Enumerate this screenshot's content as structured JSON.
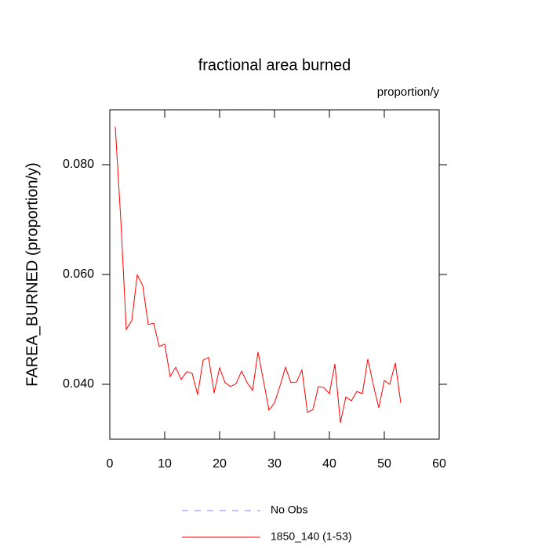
{
  "chart_data": {
    "type": "line",
    "title": "fractional area burned",
    "subtitle": "proportion/y",
    "y_label": "FAREA_BURNED  (proportion/y)",
    "x": [
      1,
      2,
      3,
      4,
      5,
      6,
      7,
      8,
      9,
      10,
      11,
      12,
      13,
      14,
      15,
      16,
      17,
      18,
      19,
      20,
      21,
      22,
      23,
      24,
      25,
      26,
      27,
      28,
      29,
      30,
      31,
      32,
      33,
      34,
      35,
      36,
      37,
      38,
      39,
      40,
      41,
      42,
      43,
      44,
      45,
      46,
      47,
      48,
      49,
      50,
      51,
      52,
      53
    ],
    "series": [
      {
        "name": "No Obs",
        "color": "#8080ff",
        "dashed": true,
        "values": [
          null,
          null,
          null,
          null,
          null,
          null,
          null,
          null,
          null,
          null,
          null,
          null,
          null,
          null,
          null,
          null,
          null,
          null,
          null,
          null,
          null,
          null,
          null,
          null,
          null,
          null,
          null,
          null,
          null,
          null,
          null,
          null,
          null,
          null,
          null,
          null,
          null,
          null,
          null,
          null,
          null,
          null,
          null,
          null,
          null,
          null,
          null,
          null,
          null,
          null,
          null,
          null,
          null
        ]
      },
      {
        "name": "1850_140 (1-53)",
        "color": "#ff0000",
        "dashed": false,
        "values": [
          0.0869,
          0.07,
          0.05,
          0.0516,
          0.0599,
          0.058,
          0.0509,
          0.0511,
          0.0469,
          0.0473,
          0.0414,
          0.0431,
          0.0409,
          0.0423,
          0.042,
          0.0381,
          0.0444,
          0.0449,
          0.0384,
          0.043,
          0.0403,
          0.0396,
          0.0401,
          0.0424,
          0.0403,
          0.0389,
          0.0459,
          0.0406,
          0.0353,
          0.0366,
          0.0397,
          0.0431,
          0.0403,
          0.0404,
          0.0426,
          0.0349,
          0.0354,
          0.0396,
          0.0394,
          0.0383,
          0.0437,
          0.033,
          0.0377,
          0.037,
          0.0387,
          0.0383,
          0.0446,
          0.0399,
          0.0357,
          0.0407,
          0.04,
          0.0439,
          0.0366
        ]
      }
    ],
    "xlim": [
      0,
      60
    ],
    "xticks": [
      0,
      10,
      20,
      30,
      40,
      50,
      60
    ],
    "ylim": [
      0.03,
      0.09
    ],
    "yticks": [
      {
        "value": 0.04,
        "label": "0.040"
      },
      {
        "value": 0.06,
        "label": "0.060"
      },
      {
        "value": 0.08,
        "label": "0.080"
      }
    ],
    "grid": false
  }
}
